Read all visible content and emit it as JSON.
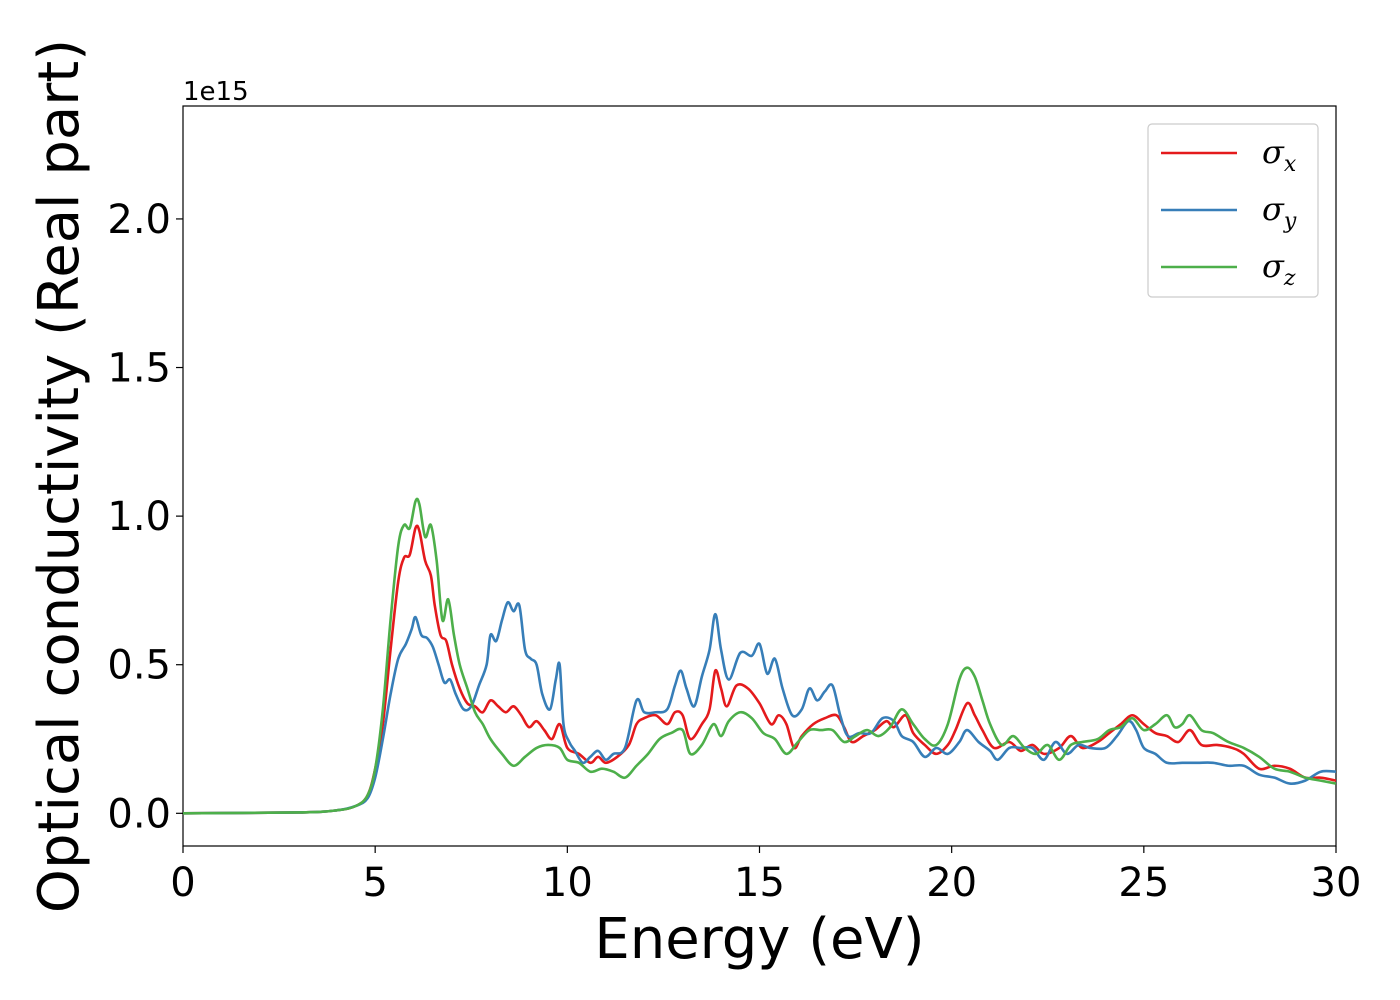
{
  "chart_data": {
    "type": "line",
    "xlabel": "Energy (eV)",
    "ylabel": "Optical conductivity (Real part)",
    "y_offset_label": "1e15",
    "xlim": [
      0,
      30
    ],
    "ylim": [
      -0.11,
      2.38
    ],
    "x_ticks": [
      0,
      5,
      10,
      15,
      20,
      25,
      30
    ],
    "y_ticks": [
      0.0,
      0.5,
      1.0,
      1.5,
      2.0
    ],
    "x_tick_labels": [
      "0",
      "5",
      "10",
      "15",
      "20",
      "25",
      "30"
    ],
    "y_tick_labels": [
      "0.0",
      "0.5",
      "1.0",
      "1.5",
      "2.0"
    ],
    "grid": false,
    "legend_position": "top-right",
    "series": [
      {
        "name": "σx",
        "symbol": "σ",
        "subscript": "x",
        "color": "#e41a1c",
        "points": [
          [
            0,
            0
          ],
          [
            3,
            0.003
          ],
          [
            4,
            0.01
          ],
          [
            4.5,
            0.025
          ],
          [
            4.8,
            0.06
          ],
          [
            5.0,
            0.15
          ],
          [
            5.2,
            0.3
          ],
          [
            5.4,
            0.55
          ],
          [
            5.6,
            0.78
          ],
          [
            5.75,
            0.86
          ],
          [
            5.9,
            0.87
          ],
          [
            6.05,
            0.96
          ],
          [
            6.15,
            0.95
          ],
          [
            6.3,
            0.85
          ],
          [
            6.45,
            0.8
          ],
          [
            6.55,
            0.7
          ],
          [
            6.7,
            0.6
          ],
          [
            6.85,
            0.58
          ],
          [
            7.0,
            0.5
          ],
          [
            7.2,
            0.42
          ],
          [
            7.4,
            0.37
          ],
          [
            7.6,
            0.36
          ],
          [
            7.8,
            0.34
          ],
          [
            8.0,
            0.38
          ],
          [
            8.2,
            0.36
          ],
          [
            8.4,
            0.34
          ],
          [
            8.6,
            0.36
          ],
          [
            8.8,
            0.33
          ],
          [
            9.0,
            0.29
          ],
          [
            9.2,
            0.31
          ],
          [
            9.4,
            0.28
          ],
          [
            9.6,
            0.25
          ],
          [
            9.8,
            0.3
          ],
          [
            10.0,
            0.22
          ],
          [
            10.3,
            0.2
          ],
          [
            10.6,
            0.17
          ],
          [
            10.8,
            0.19
          ],
          [
            11.0,
            0.17
          ],
          [
            11.3,
            0.19
          ],
          [
            11.6,
            0.23
          ],
          [
            11.8,
            0.3
          ],
          [
            12.0,
            0.32
          ],
          [
            12.3,
            0.33
          ],
          [
            12.6,
            0.3
          ],
          [
            12.8,
            0.34
          ],
          [
            13.0,
            0.33
          ],
          [
            13.2,
            0.25
          ],
          [
            13.5,
            0.3
          ],
          [
            13.7,
            0.35
          ],
          [
            13.85,
            0.48
          ],
          [
            14.0,
            0.42
          ],
          [
            14.15,
            0.36
          ],
          [
            14.4,
            0.43
          ],
          [
            14.7,
            0.42
          ],
          [
            15.0,
            0.37
          ],
          [
            15.3,
            0.3
          ],
          [
            15.5,
            0.33
          ],
          [
            15.7,
            0.3
          ],
          [
            15.9,
            0.22
          ],
          [
            16.1,
            0.26
          ],
          [
            16.4,
            0.3
          ],
          [
            16.7,
            0.32
          ],
          [
            17.0,
            0.33
          ],
          [
            17.2,
            0.29
          ],
          [
            17.4,
            0.24
          ],
          [
            17.7,
            0.26
          ],
          [
            18.0,
            0.28
          ],
          [
            18.3,
            0.31
          ],
          [
            18.5,
            0.29
          ],
          [
            18.8,
            0.33
          ],
          [
            19.0,
            0.27
          ],
          [
            19.3,
            0.23
          ],
          [
            19.6,
            0.2
          ],
          [
            19.9,
            0.23
          ],
          [
            20.1,
            0.28
          ],
          [
            20.4,
            0.37
          ],
          [
            20.6,
            0.33
          ],
          [
            20.8,
            0.28
          ],
          [
            21.1,
            0.22
          ],
          [
            21.5,
            0.24
          ],
          [
            21.8,
            0.21
          ],
          [
            22.1,
            0.23
          ],
          [
            22.4,
            0.2
          ],
          [
            22.8,
            0.22
          ],
          [
            23.1,
            0.26
          ],
          [
            23.4,
            0.22
          ],
          [
            23.8,
            0.24
          ],
          [
            24.1,
            0.27
          ],
          [
            24.4,
            0.3
          ],
          [
            24.7,
            0.33
          ],
          [
            25.0,
            0.3
          ],
          [
            25.3,
            0.27
          ],
          [
            25.6,
            0.26
          ],
          [
            25.9,
            0.24
          ],
          [
            26.2,
            0.28
          ],
          [
            26.5,
            0.23
          ],
          [
            26.9,
            0.23
          ],
          [
            27.3,
            0.22
          ],
          [
            27.6,
            0.2
          ],
          [
            28.0,
            0.15
          ],
          [
            28.4,
            0.16
          ],
          [
            28.8,
            0.15
          ],
          [
            29.2,
            0.12
          ],
          [
            29.6,
            0.12
          ],
          [
            30.0,
            0.11
          ]
        ]
      },
      {
        "name": "σy",
        "symbol": "σ",
        "subscript": "y",
        "color": "#377eb8",
        "points": [
          [
            0,
            0
          ],
          [
            3,
            0.003
          ],
          [
            4,
            0.01
          ],
          [
            4.5,
            0.025
          ],
          [
            4.8,
            0.05
          ],
          [
            5.0,
            0.12
          ],
          [
            5.2,
            0.25
          ],
          [
            5.4,
            0.4
          ],
          [
            5.6,
            0.52
          ],
          [
            5.8,
            0.57
          ],
          [
            5.95,
            0.62
          ],
          [
            6.05,
            0.66
          ],
          [
            6.2,
            0.6
          ],
          [
            6.35,
            0.59
          ],
          [
            6.5,
            0.56
          ],
          [
            6.65,
            0.5
          ],
          [
            6.8,
            0.44
          ],
          [
            6.95,
            0.45
          ],
          [
            7.1,
            0.4
          ],
          [
            7.3,
            0.35
          ],
          [
            7.5,
            0.36
          ],
          [
            7.7,
            0.43
          ],
          [
            7.9,
            0.5
          ],
          [
            8.0,
            0.6
          ],
          [
            8.15,
            0.58
          ],
          [
            8.3,
            0.65
          ],
          [
            8.45,
            0.71
          ],
          [
            8.6,
            0.68
          ],
          [
            8.75,
            0.7
          ],
          [
            8.9,
            0.55
          ],
          [
            9.05,
            0.52
          ],
          [
            9.2,
            0.5
          ],
          [
            9.35,
            0.4
          ],
          [
            9.55,
            0.35
          ],
          [
            9.7,
            0.45
          ],
          [
            9.8,
            0.5
          ],
          [
            9.9,
            0.3
          ],
          [
            10.05,
            0.24
          ],
          [
            10.2,
            0.21
          ],
          [
            10.4,
            0.17
          ],
          [
            10.6,
            0.19
          ],
          [
            10.8,
            0.21
          ],
          [
            11.0,
            0.18
          ],
          [
            11.2,
            0.2
          ],
          [
            11.5,
            0.22
          ],
          [
            11.8,
            0.38
          ],
          [
            12.0,
            0.34
          ],
          [
            12.3,
            0.34
          ],
          [
            12.6,
            0.35
          ],
          [
            12.8,
            0.43
          ],
          [
            12.95,
            0.48
          ],
          [
            13.1,
            0.42
          ],
          [
            13.3,
            0.36
          ],
          [
            13.5,
            0.46
          ],
          [
            13.7,
            0.55
          ],
          [
            13.85,
            0.67
          ],
          [
            14.0,
            0.55
          ],
          [
            14.2,
            0.45
          ],
          [
            14.5,
            0.54
          ],
          [
            14.8,
            0.53
          ],
          [
            15.0,
            0.57
          ],
          [
            15.2,
            0.47
          ],
          [
            15.4,
            0.52
          ],
          [
            15.6,
            0.42
          ],
          [
            15.85,
            0.33
          ],
          [
            16.1,
            0.35
          ],
          [
            16.3,
            0.42
          ],
          [
            16.5,
            0.38
          ],
          [
            16.7,
            0.41
          ],
          [
            16.9,
            0.43
          ],
          [
            17.1,
            0.33
          ],
          [
            17.3,
            0.26
          ],
          [
            17.6,
            0.27
          ],
          [
            17.9,
            0.27
          ],
          [
            18.2,
            0.32
          ],
          [
            18.5,
            0.31
          ],
          [
            18.7,
            0.26
          ],
          [
            19.0,
            0.24
          ],
          [
            19.3,
            0.19
          ],
          [
            19.6,
            0.22
          ],
          [
            19.9,
            0.2
          ],
          [
            20.2,
            0.24
          ],
          [
            20.4,
            0.28
          ],
          [
            20.7,
            0.24
          ],
          [
            21.0,
            0.21
          ],
          [
            21.2,
            0.18
          ],
          [
            21.5,
            0.22
          ],
          [
            21.8,
            0.22
          ],
          [
            22.1,
            0.22
          ],
          [
            22.4,
            0.18
          ],
          [
            22.7,
            0.24
          ],
          [
            23.0,
            0.2
          ],
          [
            23.3,
            0.23
          ],
          [
            23.6,
            0.22
          ],
          [
            24.0,
            0.22
          ],
          [
            24.3,
            0.26
          ],
          [
            24.6,
            0.31
          ],
          [
            24.8,
            0.28
          ],
          [
            25.0,
            0.22
          ],
          [
            25.3,
            0.2
          ],
          [
            25.6,
            0.17
          ],
          [
            26.0,
            0.17
          ],
          [
            26.4,
            0.17
          ],
          [
            26.8,
            0.17
          ],
          [
            27.2,
            0.16
          ],
          [
            27.6,
            0.16
          ],
          [
            28.0,
            0.13
          ],
          [
            28.4,
            0.12
          ],
          [
            28.8,
            0.1
          ],
          [
            29.2,
            0.11
          ],
          [
            29.6,
            0.14
          ],
          [
            30.0,
            0.14
          ]
        ]
      },
      {
        "name": "σz",
        "symbol": "σ",
        "subscript": "z",
        "color": "#4daf4a",
        "points": [
          [
            0,
            0
          ],
          [
            3,
            0.003
          ],
          [
            4,
            0.01
          ],
          [
            4.5,
            0.025
          ],
          [
            4.8,
            0.06
          ],
          [
            5.0,
            0.15
          ],
          [
            5.2,
            0.35
          ],
          [
            5.4,
            0.65
          ],
          [
            5.6,
            0.9
          ],
          [
            5.75,
            0.97
          ],
          [
            5.9,
            0.96
          ],
          [
            6.05,
            1.05
          ],
          [
            6.15,
            1.04
          ],
          [
            6.3,
            0.93
          ],
          [
            6.45,
            0.97
          ],
          [
            6.6,
            0.85
          ],
          [
            6.75,
            0.65
          ],
          [
            6.9,
            0.72
          ],
          [
            7.05,
            0.6
          ],
          [
            7.2,
            0.5
          ],
          [
            7.4,
            0.42
          ],
          [
            7.6,
            0.34
          ],
          [
            7.8,
            0.3
          ],
          [
            8.0,
            0.25
          ],
          [
            8.3,
            0.2
          ],
          [
            8.6,
            0.16
          ],
          [
            8.9,
            0.19
          ],
          [
            9.2,
            0.22
          ],
          [
            9.5,
            0.23
          ],
          [
            9.8,
            0.22
          ],
          [
            10.0,
            0.18
          ],
          [
            10.3,
            0.17
          ],
          [
            10.6,
            0.14
          ],
          [
            10.9,
            0.15
          ],
          [
            11.2,
            0.14
          ],
          [
            11.5,
            0.12
          ],
          [
            11.8,
            0.16
          ],
          [
            12.1,
            0.2
          ],
          [
            12.4,
            0.25
          ],
          [
            12.7,
            0.27
          ],
          [
            13.0,
            0.28
          ],
          [
            13.2,
            0.2
          ],
          [
            13.5,
            0.23
          ],
          [
            13.8,
            0.3
          ],
          [
            14.0,
            0.26
          ],
          [
            14.2,
            0.31
          ],
          [
            14.5,
            0.34
          ],
          [
            14.8,
            0.32
          ],
          [
            15.1,
            0.27
          ],
          [
            15.4,
            0.25
          ],
          [
            15.7,
            0.2
          ],
          [
            16.0,
            0.24
          ],
          [
            16.3,
            0.28
          ],
          [
            16.6,
            0.28
          ],
          [
            16.9,
            0.28
          ],
          [
            17.2,
            0.24
          ],
          [
            17.5,
            0.26
          ],
          [
            17.8,
            0.28
          ],
          [
            18.1,
            0.26
          ],
          [
            18.4,
            0.29
          ],
          [
            18.7,
            0.35
          ],
          [
            19.0,
            0.3
          ],
          [
            19.3,
            0.25
          ],
          [
            19.6,
            0.23
          ],
          [
            19.9,
            0.3
          ],
          [
            20.2,
            0.45
          ],
          [
            20.4,
            0.49
          ],
          [
            20.6,
            0.46
          ],
          [
            20.8,
            0.38
          ],
          [
            21.0,
            0.3
          ],
          [
            21.3,
            0.23
          ],
          [
            21.6,
            0.26
          ],
          [
            21.9,
            0.22
          ],
          [
            22.2,
            0.2
          ],
          [
            22.5,
            0.23
          ],
          [
            22.8,
            0.18
          ],
          [
            23.1,
            0.23
          ],
          [
            23.4,
            0.24
          ],
          [
            23.8,
            0.25
          ],
          [
            24.1,
            0.28
          ],
          [
            24.4,
            0.29
          ],
          [
            24.7,
            0.32
          ],
          [
            25.0,
            0.28
          ],
          [
            25.3,
            0.3
          ],
          [
            25.6,
            0.33
          ],
          [
            25.8,
            0.29
          ],
          [
            26.0,
            0.3
          ],
          [
            26.2,
            0.33
          ],
          [
            26.5,
            0.28
          ],
          [
            26.8,
            0.27
          ],
          [
            27.2,
            0.24
          ],
          [
            27.6,
            0.22
          ],
          [
            28.0,
            0.19
          ],
          [
            28.4,
            0.15
          ],
          [
            28.8,
            0.14
          ],
          [
            29.2,
            0.12
          ],
          [
            29.6,
            0.11
          ],
          [
            30.0,
            0.1
          ]
        ]
      }
    ]
  }
}
